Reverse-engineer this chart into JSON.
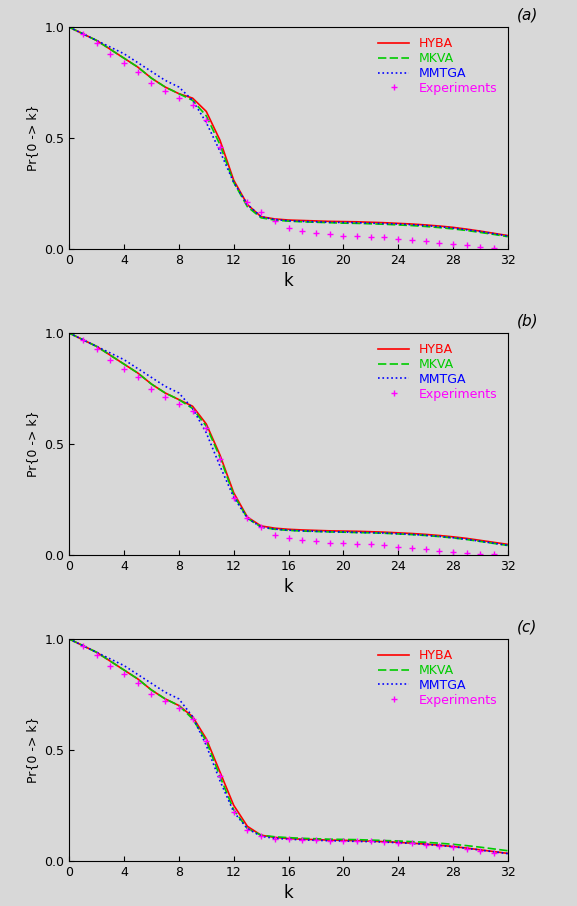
{
  "panels": [
    "(a)",
    "(b)",
    "(c)"
  ],
  "xlabel": "k",
  "ylabel": "Pr{0 -> k}",
  "xlim": [
    0,
    32
  ],
  "ylim": [
    0,
    1
  ],
  "xticks": [
    0,
    4,
    8,
    12,
    16,
    20,
    24,
    28,
    32
  ],
  "yticks": [
    0,
    0.5,
    1
  ],
  "legend_labels": [
    "HYBA",
    "MKVA",
    "MMTGA",
    "Experiments"
  ],
  "legend_colors": [
    "#ff0000",
    "#00cc00",
    "#0000ff",
    "#ff00ff"
  ],
  "background": "#d8d8d8",
  "panel_a": {
    "HYBA": [
      1.0,
      0.97,
      0.94,
      0.9,
      0.86,
      0.82,
      0.77,
      0.73,
      0.7,
      0.68,
      0.62,
      0.49,
      0.31,
      0.2,
      0.145,
      0.135,
      0.13,
      0.128,
      0.126,
      0.124,
      0.123,
      0.122,
      0.12,
      0.118,
      0.115,
      0.112,
      0.108,
      0.103,
      0.097,
      0.089,
      0.08,
      0.07,
      0.06
    ],
    "MKVA": [
      1.0,
      0.97,
      0.94,
      0.9,
      0.86,
      0.82,
      0.77,
      0.73,
      0.7,
      0.67,
      0.6,
      0.47,
      0.3,
      0.19,
      0.14,
      0.13,
      0.125,
      0.122,
      0.12,
      0.118,
      0.116,
      0.115,
      0.113,
      0.111,
      0.108,
      0.105,
      0.101,
      0.096,
      0.09,
      0.083,
      0.074,
      0.065,
      0.055
    ],
    "MMTGA": [
      1.0,
      0.97,
      0.94,
      0.91,
      0.88,
      0.84,
      0.8,
      0.76,
      0.73,
      0.67,
      0.57,
      0.44,
      0.3,
      0.2,
      0.145,
      0.132,
      0.127,
      0.124,
      0.122,
      0.12,
      0.119,
      0.118,
      0.116,
      0.114,
      0.112,
      0.109,
      0.105,
      0.1,
      0.094,
      0.086,
      0.078,
      0.068,
      0.058
    ],
    "Exp_x": [
      1,
      2,
      3,
      4,
      5,
      6,
      7,
      8,
      9,
      10,
      11,
      13,
      14,
      15,
      16,
      17,
      18,
      19,
      20,
      21,
      22,
      23,
      24,
      25,
      26,
      27,
      28,
      29,
      30,
      31
    ],
    "Exp_y": [
      0.97,
      0.93,
      0.88,
      0.84,
      0.8,
      0.75,
      0.71,
      0.68,
      0.65,
      0.58,
      0.46,
      0.21,
      0.165,
      0.125,
      0.095,
      0.08,
      0.07,
      0.065,
      0.06,
      0.058,
      0.055,
      0.052,
      0.045,
      0.04,
      0.035,
      0.028,
      0.022,
      0.016,
      0.01,
      0.006
    ]
  },
  "panel_b": {
    "HYBA": [
      1.0,
      0.97,
      0.94,
      0.9,
      0.86,
      0.82,
      0.77,
      0.73,
      0.7,
      0.67,
      0.59,
      0.45,
      0.28,
      0.17,
      0.13,
      0.12,
      0.115,
      0.112,
      0.11,
      0.108,
      0.107,
      0.106,
      0.104,
      0.102,
      0.099,
      0.096,
      0.092,
      0.087,
      0.081,
      0.074,
      0.065,
      0.056,
      0.047
    ],
    "MKVA": [
      1.0,
      0.97,
      0.94,
      0.9,
      0.86,
      0.82,
      0.77,
      0.73,
      0.7,
      0.66,
      0.58,
      0.44,
      0.27,
      0.165,
      0.125,
      0.115,
      0.11,
      0.107,
      0.105,
      0.103,
      0.102,
      0.1,
      0.099,
      0.097,
      0.094,
      0.091,
      0.087,
      0.082,
      0.076,
      0.069,
      0.06,
      0.051,
      0.042
    ],
    "MMTGA": [
      1.0,
      0.97,
      0.94,
      0.91,
      0.88,
      0.84,
      0.8,
      0.76,
      0.73,
      0.66,
      0.55,
      0.4,
      0.26,
      0.165,
      0.125,
      0.116,
      0.111,
      0.108,
      0.106,
      0.104,
      0.103,
      0.101,
      0.1,
      0.098,
      0.095,
      0.092,
      0.088,
      0.083,
      0.077,
      0.07,
      0.061,
      0.052,
      0.043
    ],
    "Exp_x": [
      1,
      2,
      3,
      4,
      5,
      6,
      7,
      8,
      9,
      10,
      11,
      12,
      13,
      14,
      15,
      16,
      17,
      18,
      19,
      20,
      21,
      22,
      23,
      24,
      25,
      26,
      27,
      28,
      29,
      30,
      31
    ],
    "Exp_y": [
      0.97,
      0.93,
      0.88,
      0.84,
      0.8,
      0.75,
      0.71,
      0.68,
      0.65,
      0.57,
      0.43,
      0.255,
      0.165,
      0.125,
      0.09,
      0.075,
      0.065,
      0.06,
      0.055,
      0.053,
      0.05,
      0.047,
      0.042,
      0.037,
      0.032,
      0.025,
      0.019,
      0.013,
      0.008,
      0.004,
      0.002
    ]
  },
  "panel_c": {
    "HYBA": [
      1.0,
      0.97,
      0.94,
      0.9,
      0.86,
      0.82,
      0.77,
      0.73,
      0.7,
      0.65,
      0.55,
      0.4,
      0.25,
      0.155,
      0.115,
      0.105,
      0.1,
      0.097,
      0.095,
      0.093,
      0.092,
      0.09,
      0.088,
      0.086,
      0.083,
      0.079,
      0.075,
      0.07,
      0.064,
      0.057,
      0.049,
      0.041,
      0.033
    ],
    "MKVA": [
      1.0,
      0.97,
      0.94,
      0.9,
      0.86,
      0.82,
      0.77,
      0.73,
      0.7,
      0.64,
      0.54,
      0.38,
      0.23,
      0.145,
      0.115,
      0.108,
      0.104,
      0.101,
      0.099,
      0.097,
      0.096,
      0.095,
      0.093,
      0.091,
      0.089,
      0.086,
      0.083,
      0.079,
      0.074,
      0.068,
      0.061,
      0.053,
      0.045
    ],
    "MMTGA": [
      1.0,
      0.97,
      0.94,
      0.91,
      0.88,
      0.84,
      0.8,
      0.76,
      0.73,
      0.65,
      0.52,
      0.36,
      0.22,
      0.145,
      0.11,
      0.101,
      0.097,
      0.094,
      0.092,
      0.09,
      0.089,
      0.087,
      0.086,
      0.084,
      0.081,
      0.078,
      0.074,
      0.069,
      0.063,
      0.056,
      0.048,
      0.04,
      0.032
    ],
    "Exp_x": [
      1,
      2,
      3,
      4,
      5,
      6,
      7,
      8,
      9,
      10,
      11,
      12,
      13,
      14,
      15,
      16,
      17,
      18,
      19,
      20,
      21,
      22,
      23,
      24,
      25,
      26,
      27,
      28,
      29,
      30,
      31
    ],
    "Exp_y": [
      0.97,
      0.93,
      0.88,
      0.84,
      0.8,
      0.75,
      0.72,
      0.69,
      0.64,
      0.54,
      0.38,
      0.22,
      0.14,
      0.11,
      0.1,
      0.098,
      0.095,
      0.093,
      0.091,
      0.09,
      0.088,
      0.087,
      0.085,
      0.082,
      0.078,
      0.073,
      0.067,
      0.06,
      0.052,
      0.043,
      0.034
    ]
  }
}
